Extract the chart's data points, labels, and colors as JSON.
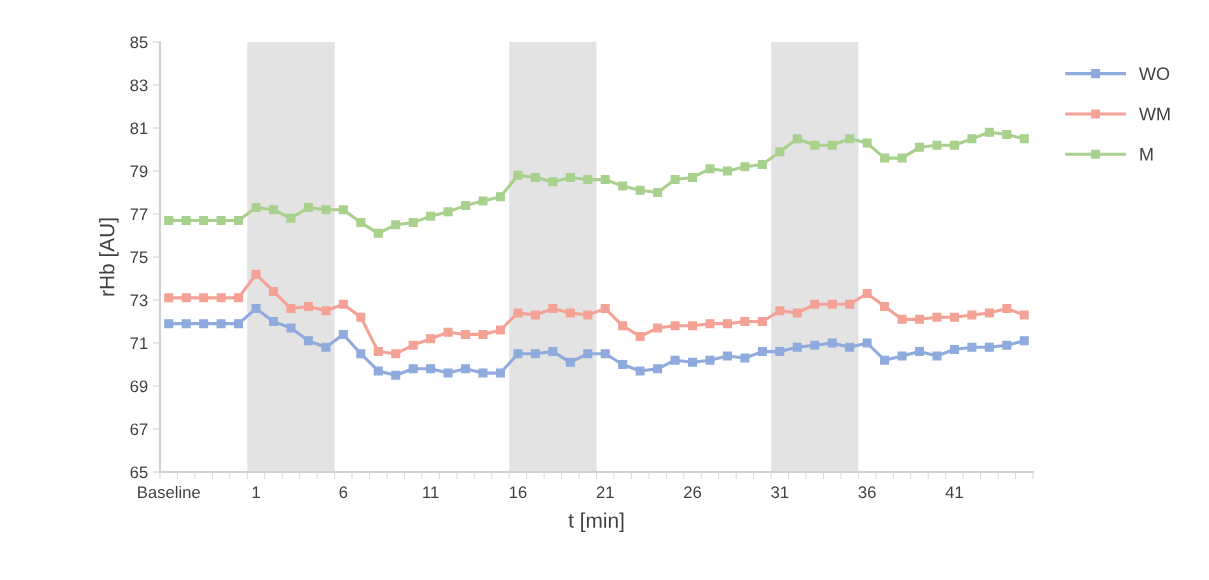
{
  "chart_data": {
    "type": "line",
    "xlabel": "t [min]",
    "ylabel": "rHb [AU]",
    "categories": [
      "Baseline",
      null,
      null,
      null,
      null,
      "1",
      null,
      null,
      null,
      null,
      "6",
      null,
      null,
      null,
      null,
      "11",
      null,
      null,
      null,
      null,
      "16",
      null,
      null,
      null,
      null,
      "21",
      null,
      null,
      null,
      null,
      "26",
      null,
      null,
      null,
      null,
      "31",
      null,
      null,
      null,
      null,
      "36",
      null,
      null,
      null,
      null,
      "41",
      null,
      null,
      null,
      null
    ],
    "series": [
      {
        "name": "WO",
        "color": "#8faadc",
        "values": [
          71.9,
          71.9,
          71.9,
          71.9,
          71.9,
          72.6,
          72.0,
          71.7,
          71.1,
          70.8,
          71.4,
          70.5,
          69.7,
          69.5,
          69.8,
          69.8,
          69.6,
          69.8,
          69.6,
          69.6,
          70.5,
          70.5,
          70.6,
          70.1,
          70.5,
          70.5,
          70.0,
          69.7,
          69.8,
          70.2,
          70.1,
          70.2,
          70.4,
          70.3,
          70.6,
          70.6,
          70.8,
          70.9,
          71.0,
          70.8,
          71.0,
          70.2,
          70.4,
          70.6,
          70.4,
          70.7,
          70.8,
          70.8,
          70.9,
          71.1
        ]
      },
      {
        "name": "WM",
        "color": "#f4a196",
        "values": [
          73.1,
          73.1,
          73.1,
          73.1,
          73.1,
          74.2,
          73.4,
          72.6,
          72.7,
          72.5,
          72.8,
          72.2,
          70.6,
          70.5,
          70.9,
          71.2,
          71.5,
          71.4,
          71.4,
          71.6,
          72.4,
          72.3,
          72.6,
          72.4,
          72.3,
          72.6,
          71.8,
          71.3,
          71.7,
          71.8,
          71.8,
          71.9,
          71.9,
          72.0,
          72.0,
          72.5,
          72.4,
          72.8,
          72.8,
          72.8,
          73.3,
          72.7,
          72.1,
          72.1,
          72.2,
          72.2,
          72.3,
          72.4,
          72.6,
          72.3
        ]
      },
      {
        "name": "M",
        "color": "#a9d18e",
        "values": [
          76.7,
          76.7,
          76.7,
          76.7,
          76.7,
          77.3,
          77.2,
          76.8,
          77.3,
          77.2,
          77.2,
          76.6,
          76.1,
          76.5,
          76.6,
          76.9,
          77.1,
          77.4,
          77.6,
          77.8,
          78.8,
          78.7,
          78.5,
          78.7,
          78.6,
          78.6,
          78.3,
          78.1,
          78.0,
          78.6,
          78.7,
          79.1,
          79.0,
          79.2,
          79.3,
          79.9,
          80.5,
          80.2,
          80.2,
          80.5,
          80.3,
          79.6,
          79.6,
          80.1,
          80.2,
          80.2,
          80.5,
          80.8,
          80.7,
          80.5
        ]
      }
    ],
    "ylim": [
      65,
      85
    ],
    "yticks": [
      65,
      67,
      69,
      71,
      73,
      75,
      77,
      79,
      81,
      83,
      85
    ],
    "bands": [
      {
        "axis": "x",
        "from": "1",
        "to": "6",
        "color": "#e3e3e3"
      },
      {
        "axis": "x",
        "from": "16",
        "to": "21",
        "color": "#e3e3e3"
      },
      {
        "axis": "x",
        "from": "31",
        "to": "36",
        "color": "#e3e3e3"
      }
    ],
    "marker": "square",
    "line_style": "solid",
    "grid": false,
    "legend": "top right"
  }
}
